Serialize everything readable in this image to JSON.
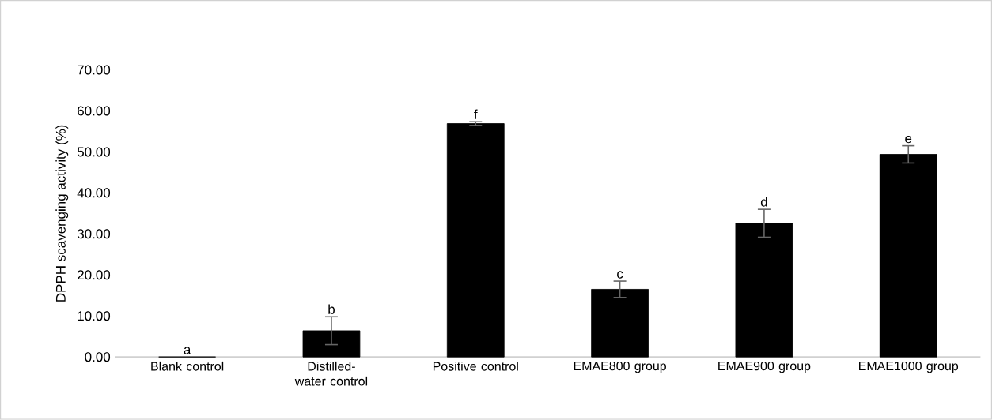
{
  "chart_data": {
    "type": "bar",
    "ylabel": "DPPH scavenging activity (%)",
    "categories": [
      "Blank control",
      "Distilled-water control",
      "Positive control",
      "EMAE800 group",
      "EMAE900 group",
      "EMAE1000 group"
    ],
    "values": [
      0,
      6.4,
      56.9,
      16.5,
      32.6,
      49.4
    ],
    "errors": [
      null,
      3.4,
      0.45,
      2.0,
      3.4,
      2.1
    ],
    "color": "#000000",
    "ylim": [
      0,
      70
    ],
    "yticks": [
      {
        "value": 0,
        "label": "0.00"
      },
      {
        "value": 10,
        "label": "10.00"
      },
      {
        "value": 20,
        "label": "20.00"
      },
      {
        "value": 30,
        "label": "30.00"
      },
      {
        "value": 40,
        "label": "40.00"
      },
      {
        "value": 50,
        "label": "50.00"
      },
      {
        "value": 60,
        "label": "60.00"
      },
      {
        "value": 70,
        "label": "70.00"
      }
    ],
    "annotations": [
      {
        "text": "a",
        "x": "Blank control",
        "y": 0
      },
      {
        "text": "b",
        "x": "Distilled-water control",
        "y": 9.8
      },
      {
        "text": "f",
        "x": "Positive control",
        "y": 57.35
      },
      {
        "text": "c",
        "x": "EMAE800 group",
        "y": 18.5
      },
      {
        "text": "d",
        "x": "EMAE900 group",
        "y": 36.0
      },
      {
        "text": "e",
        "x": "EMAE1000 group",
        "y": 51.5
      }
    ]
  }
}
